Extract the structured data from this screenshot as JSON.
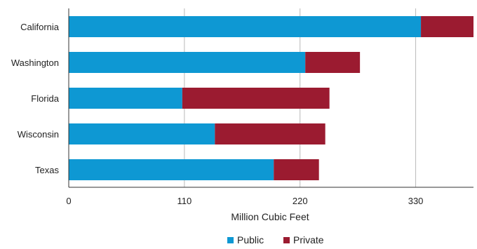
{
  "chart_data": {
    "type": "bar",
    "orientation": "horizontal",
    "stacked": true,
    "categories": [
      "California",
      "Washington",
      "Florida",
      "Wisconsin",
      "Texas"
    ],
    "series": [
      {
        "name": "Public",
        "color": "#0e98d3",
        "values": [
          335,
          225,
          108,
          139,
          195
        ]
      },
      {
        "name": "Private",
        "color": "#9b1b30",
        "values": [
          50,
          52,
          140,
          105,
          43
        ]
      }
    ],
    "xlabel": "Million Cubic Feet",
    "xlim": [
      0,
      385
    ],
    "xticks": [
      0,
      110,
      220,
      330
    ],
    "xtick_labels": [
      "0",
      "110",
      "220",
      "330"
    ],
    "grid": "vertical",
    "legend_position": "bottom-center"
  }
}
